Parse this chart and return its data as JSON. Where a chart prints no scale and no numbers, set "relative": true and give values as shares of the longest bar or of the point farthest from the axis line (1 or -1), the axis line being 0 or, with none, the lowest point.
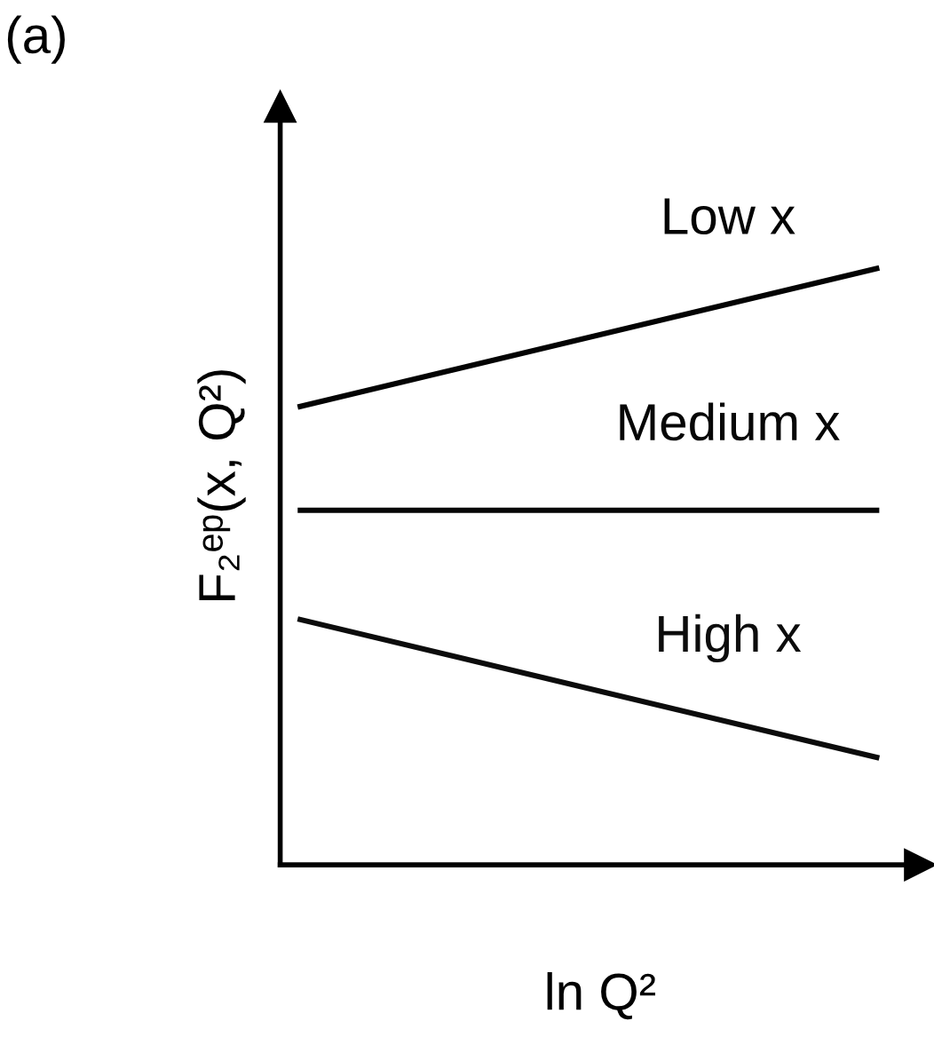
{
  "chart_data": {
    "type": "line",
    "relative": true,
    "xlabel": "ln Q²",
    "ylabel": "F₂ᵉᵖ(x, Q²)",
    "categories": [
      null,
      null
    ],
    "annotations": [
      "(a)"
    ],
    "legend": false,
    "grid": false,
    "marker": "none",
    "line_style": "solid",
    "series": [
      {
        "name": "Low x",
        "color": "#030303",
        "values": [
          0.767,
          1.0
        ]
      },
      {
        "name": "Medium x",
        "color": "#060606",
        "values": [
          0.594,
          0.594
        ]
      },
      {
        "name": "High x",
        "color": "#0c0c0c",
        "values": [
          0.412,
          0.179
        ]
      }
    ]
  }
}
